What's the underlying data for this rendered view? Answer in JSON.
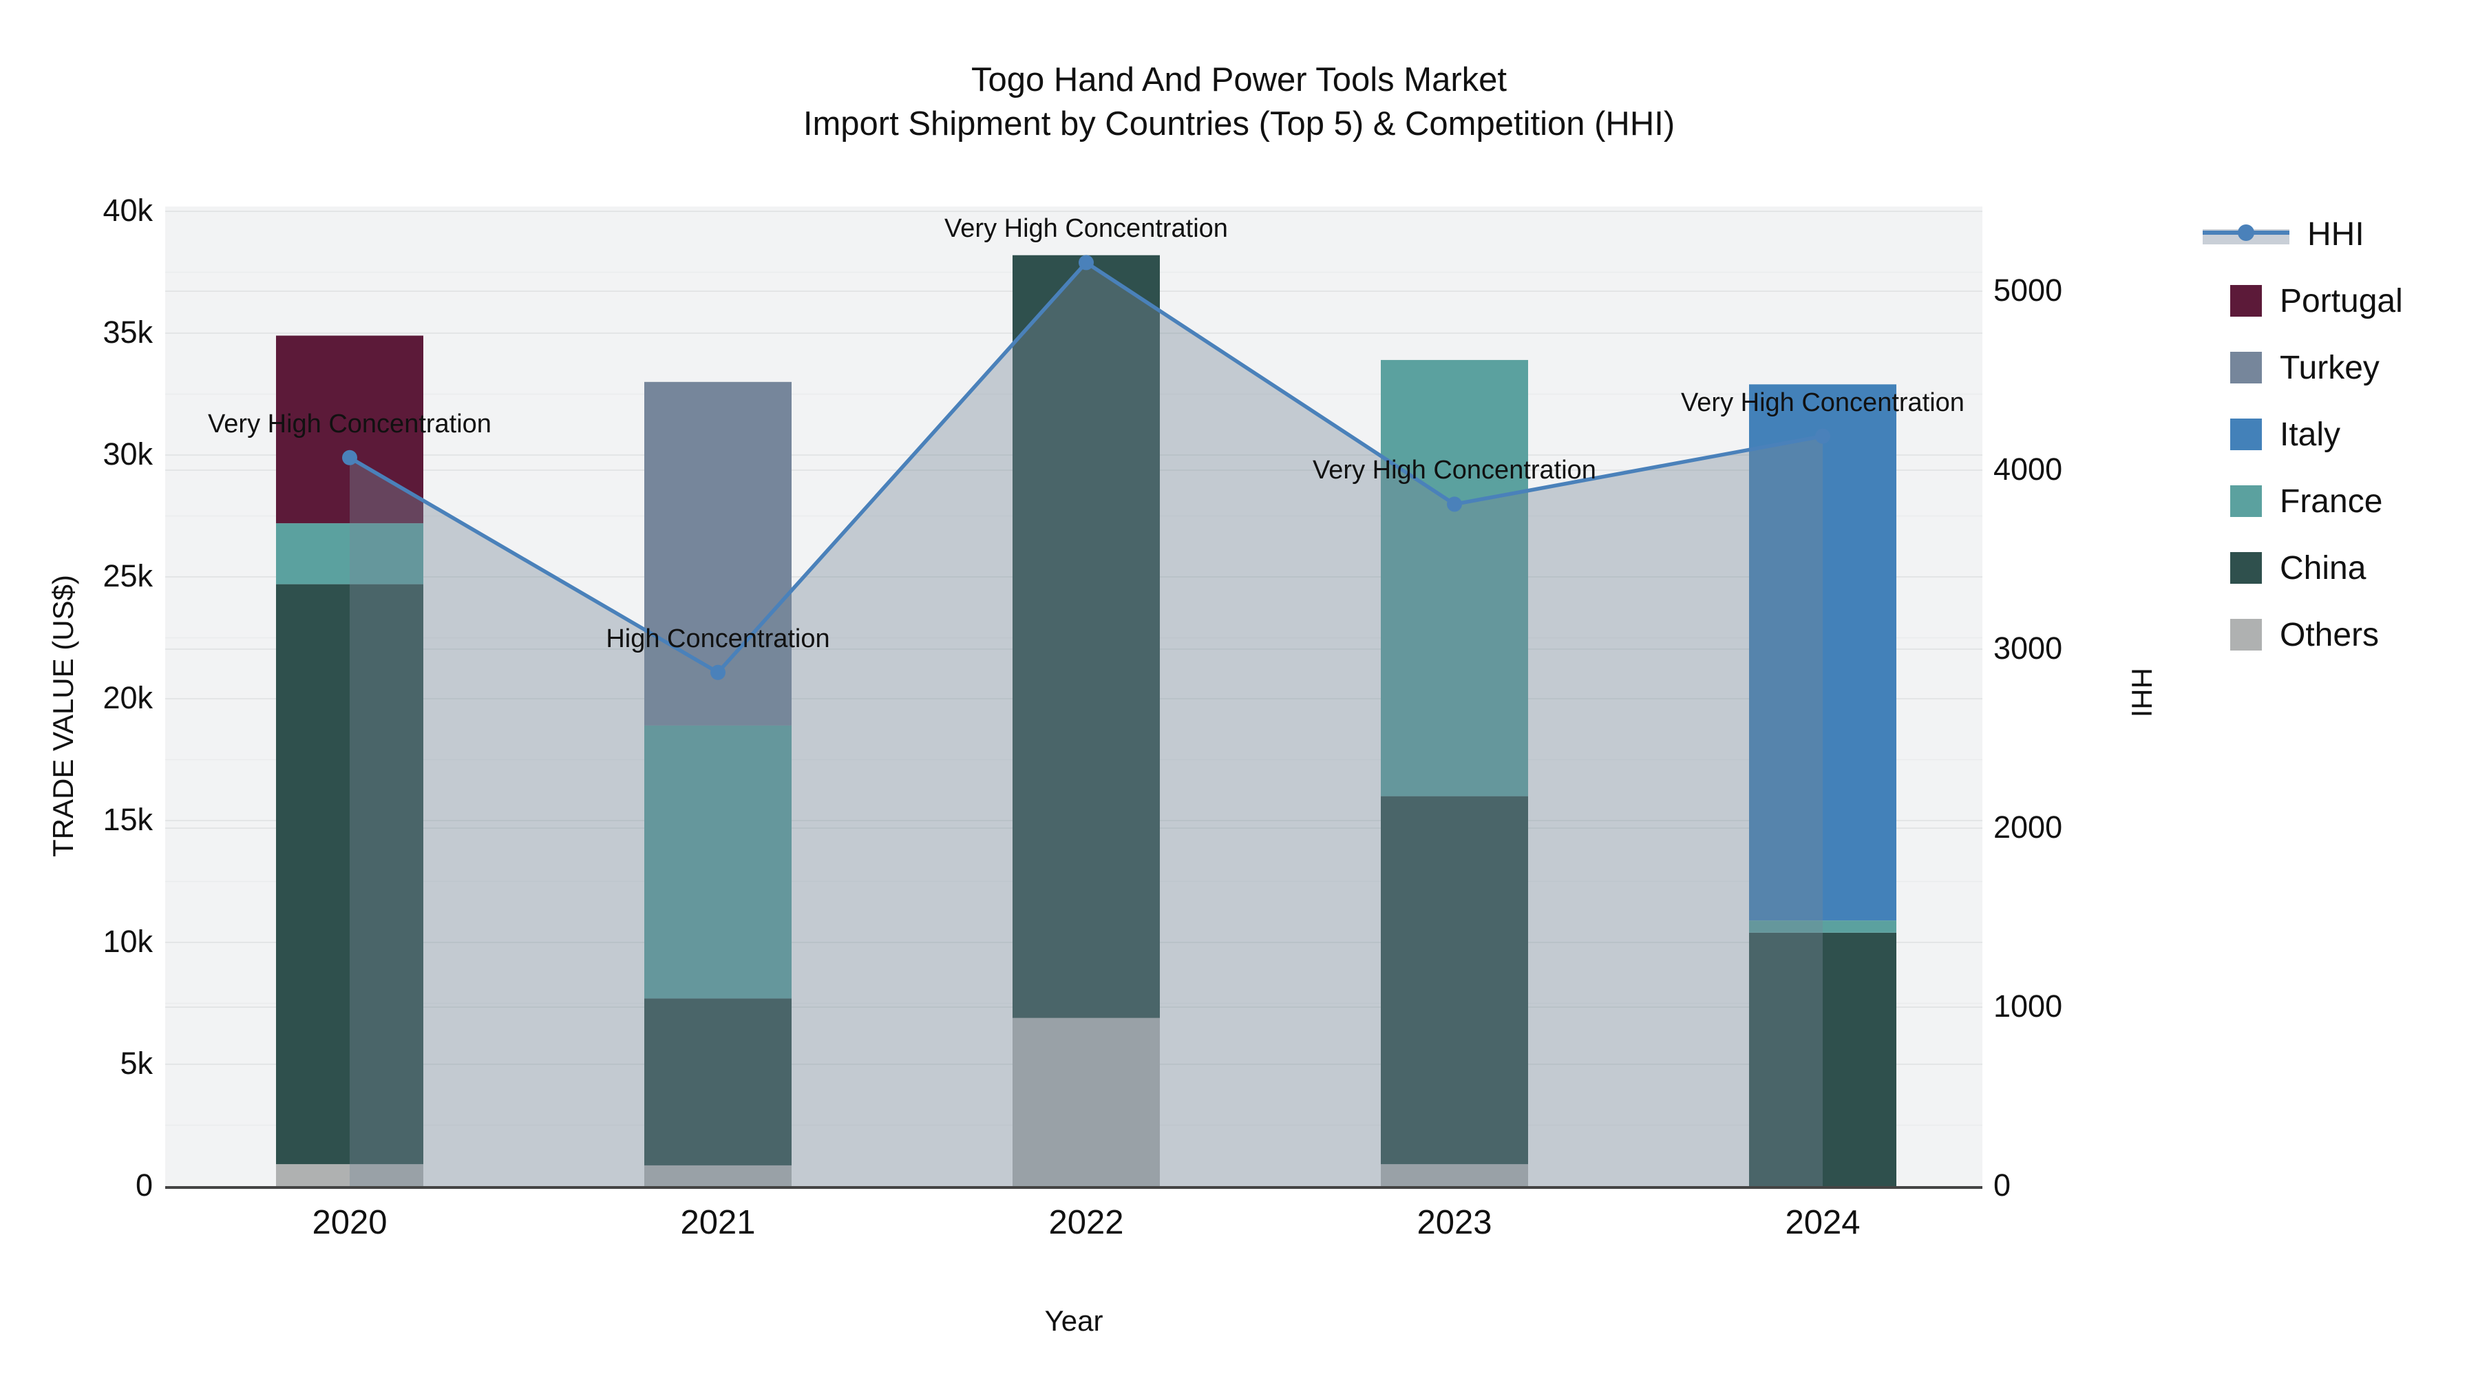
{
  "title": {
    "line1": "Togo Hand And Power Tools Market",
    "line2": "Import Shipment by Countries (Top 5) & Competition (HHI)"
  },
  "axes": {
    "x_title": "Year",
    "y_left_title": "TRADE VALUE (US$)",
    "y_right_title": "HHI",
    "y_left_ticks": [
      {
        "label": "0",
        "value": 0
      },
      {
        "label": "5k",
        "value": 5000
      },
      {
        "label": "10k",
        "value": 10000
      },
      {
        "label": "15k",
        "value": 15000
      },
      {
        "label": "20k",
        "value": 20000
      },
      {
        "label": "25k",
        "value": 25000
      },
      {
        "label": "30k",
        "value": 30000
      },
      {
        "label": "35k",
        "value": 35000
      },
      {
        "label": "40k",
        "value": 40000
      }
    ],
    "y_right_ticks": [
      {
        "label": "0",
        "value": 0
      },
      {
        "label": "1000",
        "value": 1000
      },
      {
        "label": "2000",
        "value": 2000
      },
      {
        "label": "3000",
        "value": 3000
      },
      {
        "label": "4000",
        "value": 4000
      },
      {
        "label": "5000",
        "value": 5000
      }
    ]
  },
  "colors": {
    "hhi_line": "#4a81ba",
    "hhi_fill": "#768898",
    "hhi_fill_opacity": 0.38,
    "plot_bg": "#f2f3f4",
    "grid": "#e3e5e6",
    "grid_minor": "#eaeced",
    "axis_line": "#444444",
    "Portugal": "#5c1a39",
    "Turkey": "#76869b",
    "Italy": "#4381b9",
    "France": "#5ba19f",
    "China": "#2f504d",
    "Others": "#afb1b1"
  },
  "legend": {
    "items": [
      {
        "label": "HHI",
        "type": "line"
      },
      {
        "label": "Portugal",
        "type": "swatch",
        "color": "#5c1a39"
      },
      {
        "label": "Turkey",
        "type": "swatch",
        "color": "#76869b"
      },
      {
        "label": "Italy",
        "type": "swatch",
        "color": "#4381b9"
      },
      {
        "label": "France",
        "type": "swatch",
        "color": "#5ba19f"
      },
      {
        "label": "China",
        "type": "swatch",
        "color": "#2f504d"
      },
      {
        "label": "Others",
        "type": "swatch",
        "color": "#afb1b1"
      }
    ]
  },
  "chart_data": {
    "type": "bar",
    "subtype": "stacked bars with HHI line on secondary axis",
    "categories": [
      "2020",
      "2021",
      "2022",
      "2023",
      "2024"
    ],
    "xlabel": "Year",
    "ylabel_left": "TRADE VALUE (US$)",
    "ylabel_right": "HHI",
    "ylim_left": [
      0,
      40000
    ],
    "ylim_right": [
      0,
      5000
    ],
    "bars": [
      {
        "year": "2020",
        "segments": [
          {
            "country": "Others",
            "value": 900
          },
          {
            "country": "China",
            "value": 23800
          },
          {
            "country": "France",
            "value": 2500
          },
          {
            "country": "Portugal",
            "value": 7700
          }
        ]
      },
      {
        "year": "2021",
        "segments": [
          {
            "country": "Others",
            "value": 850
          },
          {
            "country": "China",
            "value": 6850
          },
          {
            "country": "France",
            "value": 11200
          },
          {
            "country": "Turkey",
            "value": 14100
          }
        ]
      },
      {
        "year": "2022",
        "segments": [
          {
            "country": "Others",
            "value": 6900
          },
          {
            "country": "China",
            "value": 31300
          }
        ]
      },
      {
        "year": "2023",
        "segments": [
          {
            "country": "Others",
            "value": 900
          },
          {
            "country": "China",
            "value": 15100
          },
          {
            "country": "France",
            "value": 17900
          }
        ]
      },
      {
        "year": "2024",
        "segments": [
          {
            "country": "China",
            "value": 10400
          },
          {
            "country": "France",
            "value": 500
          },
          {
            "country": "Italy",
            "value": 22000
          }
        ]
      }
    ],
    "series": [
      {
        "name": "HHI",
        "axis": "right",
        "values": [
          4070,
          2870,
          5160,
          3810,
          4190
        ]
      }
    ],
    "annotations": [
      {
        "year": "2020",
        "text": "Very High Concentration"
      },
      {
        "year": "2021",
        "text": "High Concentration"
      },
      {
        "year": "2022",
        "text": "Very High Concentration"
      },
      {
        "year": "2023",
        "text": "Very High Concentration"
      },
      {
        "year": "2024",
        "text": "Very High Concentration"
      }
    ],
    "legend_position": "right",
    "grid": true
  }
}
